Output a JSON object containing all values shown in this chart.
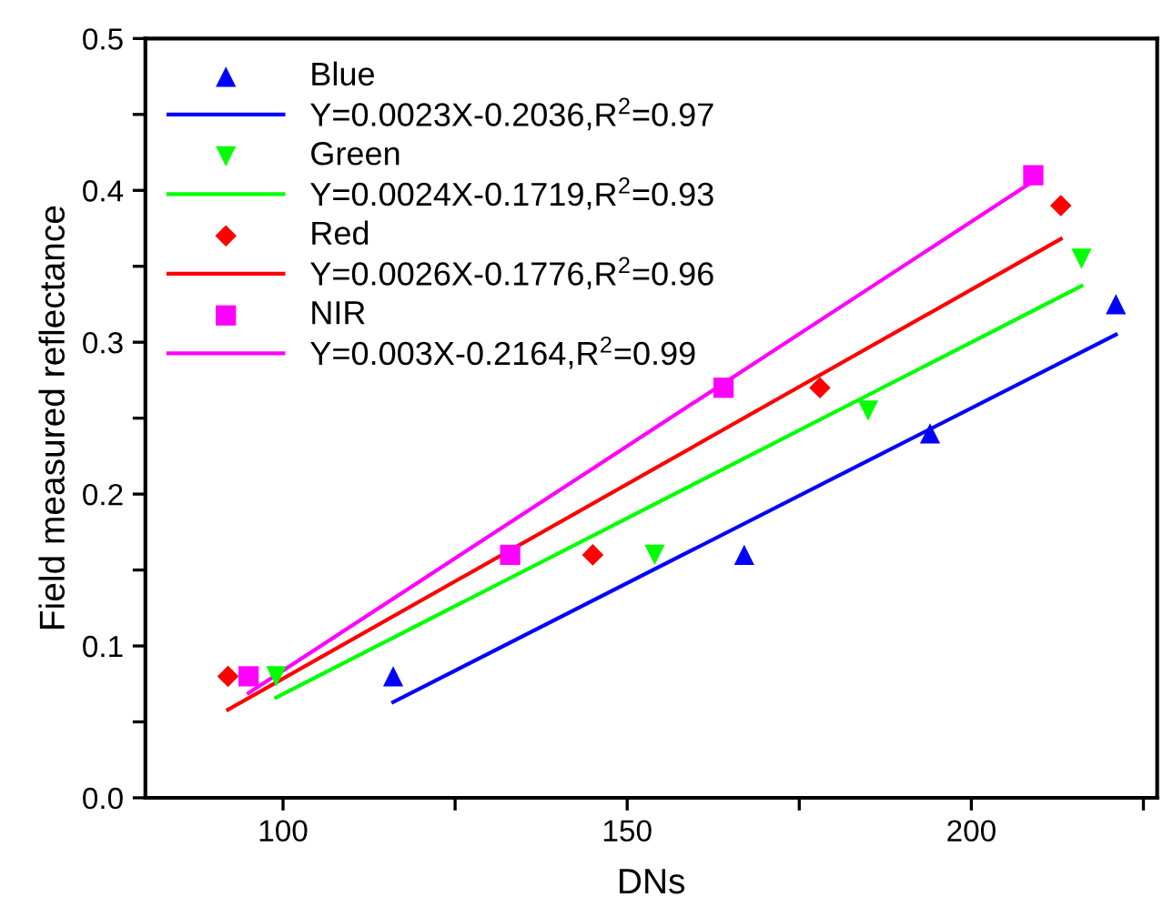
{
  "chart_data": {
    "type": "scatter",
    "xlabel": "DNs",
    "ylabel": "Field measured reflectance",
    "xlim": [
      80,
      227
    ],
    "xticks": [
      100,
      {
        "value": 125,
        "label": null
      },
      150,
      {
        "value": 175,
        "label": null
      },
      200,
      {
        "value": 225,
        "label": null
      }
    ],
    "ylim": [
      0,
      0.5
    ],
    "yticks": [
      "0.0",
      {
        "value": 0.05,
        "label": null
      },
      0.1,
      {
        "value": 0.15,
        "label": null
      },
      0.2,
      {
        "value": 0.25,
        "label": null
      },
      0.3,
      {
        "value": 0.35,
        "label": null
      },
      0.4,
      {
        "value": 0.45,
        "label": null
      },
      0.5
    ],
    "grid": false,
    "legend": "top left",
    "series": [
      {
        "name": "Blue",
        "marker": "triangle",
        "color": "#0000ff",
        "x": [
          116,
          167,
          194,
          221
        ],
        "values": [
          0.08,
          0.16,
          0.24,
          0.325
        ]
      },
      {
        "name": "Y=0.0023X-0.2036,R$^{2}$=0.97",
        "type": "line",
        "marker": "none",
        "color": "#0000ff",
        "x": [
          116,
          221
        ],
        "values": [
          0.063,
          0.305
        ]
      },
      {
        "name": "Green",
        "marker": "triangle_down",
        "color": "#00ff00",
        "x": [
          99,
          154,
          185,
          216
        ],
        "values": [
          0.08,
          0.16,
          0.255,
          0.355
        ]
      },
      {
        "name": "Y=0.0024X-0.1719,R$^{2}$=0.93",
        "type": "line",
        "marker": "none",
        "color": "#00ff00",
        "x": [
          99,
          216
        ],
        "values": [
          0.066,
          0.337
        ]
      },
      {
        "name": "Red",
        "marker": "diamond",
        "color": "#ff0000",
        "x": [
          92,
          145,
          178,
          213
        ],
        "values": [
          0.08,
          0.16,
          0.27,
          0.39
        ]
      },
      {
        "name": "Y=0.0026X-0.1776,R$^{2}$=0.96",
        "type": "line",
        "marker": "none",
        "color": "#ff0000",
        "x": [
          92,
          213
        ],
        "values": [
          0.058,
          0.368
        ]
      },
      {
        "name": "NIR",
        "marker": "square",
        "color": "#ff00ff",
        "x": [
          95,
          133,
          164,
          209
        ],
        "values": [
          0.08,
          0.16,
          0.27,
          0.41
        ]
      },
      {
        "name": "Y=0.003X-0.2164,R$^{2}$=0.99",
        "type": "line",
        "marker": "none",
        "color": "#ff00ff",
        "x": [
          95,
          209
        ],
        "values": [
          0.069,
          0.406
        ]
      }
    ]
  }
}
